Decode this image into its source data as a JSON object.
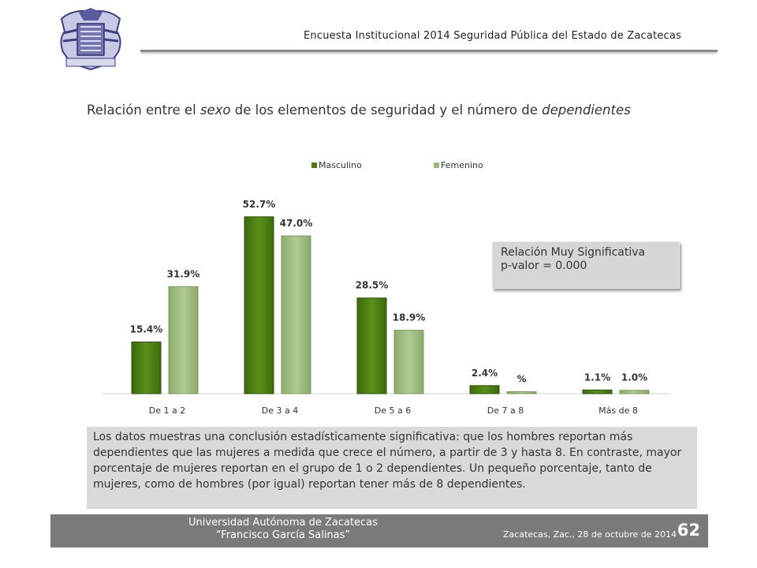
{
  "header": {
    "survey_title": "Encuesta Institucional 2014 Seguridad Pública del Estado de Zacatecas"
  },
  "title": {
    "part1": "Relación entre el ",
    "part2": "sexo",
    "part3": " de los elementos de seguridad y el número de ",
    "part4": "dependientes"
  },
  "chart_data": {
    "type": "bar",
    "categories": [
      "De 1 a 2",
      "De 3 a 4",
      "De 5 a 6",
      "De 7 a 8",
      "Más de 8"
    ],
    "series": [
      {
        "name": "Masculino",
        "values": [
          15.4,
          52.7,
          28.5,
          2.4,
          1.1
        ],
        "labels": [
          "15.4%",
          "52.7%",
          "28.5%",
          "2.4%",
          "1.1%"
        ],
        "color": "#4e7d14"
      },
      {
        "name": "Femenino",
        "values": [
          31.9,
          47.0,
          18.9,
          0.5,
          1.0
        ],
        "labels": [
          "31.9%",
          "47.0%",
          "18.9%",
          "%",
          "1.0%"
        ],
        "color": "#9dba7e"
      }
    ],
    "ylim": [
      0,
      55
    ],
    "legend_position": "top",
    "grid": false
  },
  "note": {
    "line1": "Relación Muy  Significativa",
    "line2": "p-valor = 0.000"
  },
  "description": "Los datos muestras una conclusión estadísticamente significativa: que los hombres reportan más dependientes que las mujeres a medida que crece el número, a partir de 3 y hasta 8.  En contraste, mayor porcentaje de mujeres reportan en el grupo de 1 o 2 dependientes.  Un pequeño porcentaje, tanto de mujeres, como de hombres (por igual) reportan tener más de 8 dependientes.",
  "footer": {
    "university": "Universidad Autónoma de Zacatecas",
    "university_sub": "“Francisco García Salinas”",
    "date": "Zacatecas, Zac., 28 de octubre de 2014",
    "page": "62"
  }
}
